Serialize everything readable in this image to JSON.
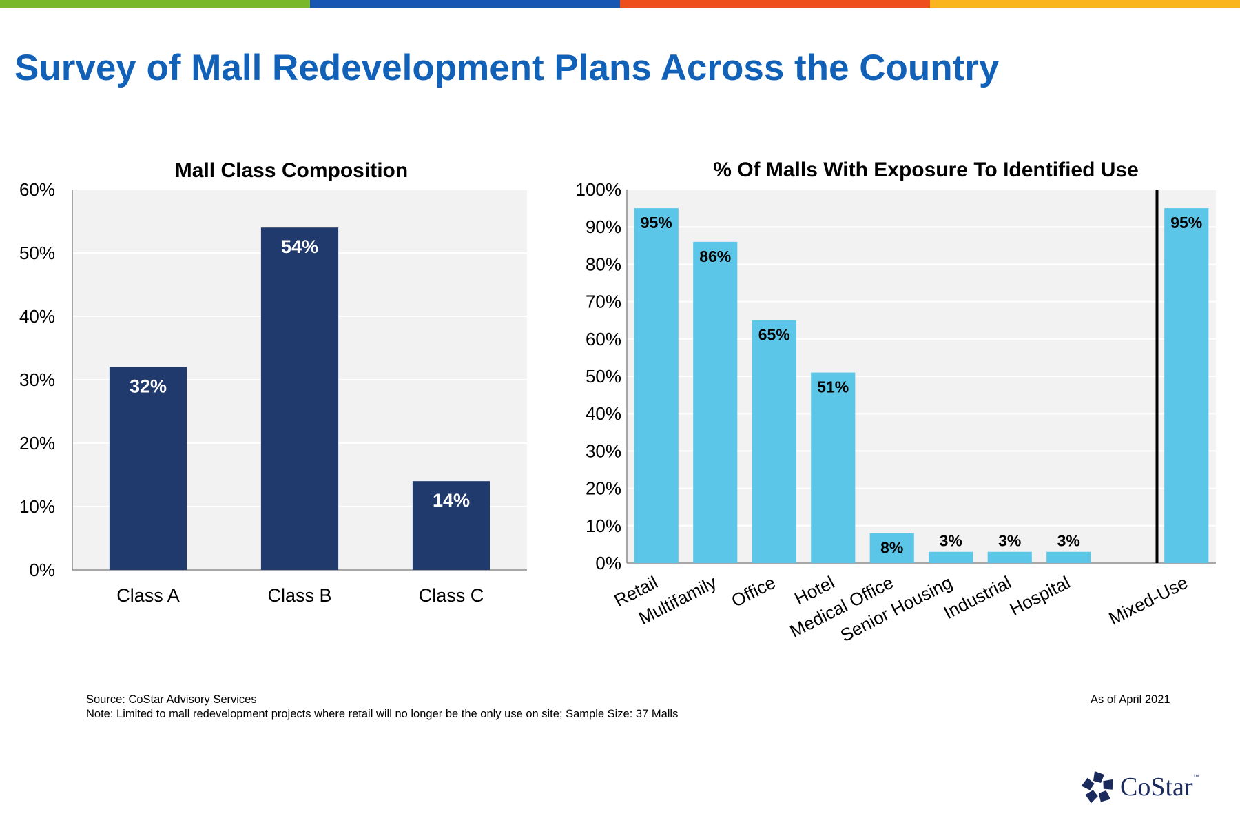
{
  "header": {
    "title": "Survey of Mall Redevelopment Plans Across the Country",
    "accent_colors": [
      "#79b82b",
      "#1856b3",
      "#ee4e1b",
      "#fab51c"
    ],
    "title_color": "#1061b7"
  },
  "chart_data": [
    {
      "type": "bar",
      "title": "Mall Class Composition",
      "categories": [
        "Class A",
        "Class B",
        "Class C"
      ],
      "values": [
        32,
        54,
        14
      ],
      "value_labels": [
        "32%",
        "54%",
        "14%"
      ],
      "ylim": [
        0,
        60
      ],
      "yticks": [
        "0%",
        "10%",
        "20%",
        "30%",
        "40%",
        "50%",
        "60%"
      ],
      "grid": true,
      "bar_color": "#203a6e",
      "label_color": "#ffffff"
    },
    {
      "type": "bar",
      "title": "% Of Malls With Exposure To Identified Use",
      "categories": [
        "Retail",
        "Multifamily",
        "Office",
        "Hotel",
        "Medical Office",
        "Senior Housing",
        "Industrial",
        "Hospital",
        "",
        "Mixed-Use"
      ],
      "values": [
        95,
        86,
        65,
        51,
        8,
        3,
        3,
        3,
        null,
        95
      ],
      "value_labels": [
        "95%",
        "86%",
        "65%",
        "51%",
        "8%",
        "3%",
        "3%",
        "3%",
        "",
        "95%"
      ],
      "ylim": [
        0,
        100
      ],
      "yticks": [
        "0%",
        "10%",
        "20%",
        "30%",
        "40%",
        "50%",
        "60%",
        "70%",
        "80%",
        "90%",
        "100%"
      ],
      "grid": true,
      "divider_before": "Mixed-Use",
      "bar_color": "#5bc6e8",
      "label_color": "#000000"
    }
  ],
  "footer": {
    "source": "Source: CoStar Advisory Services",
    "note": "Note: Limited to mall redevelopment projects where retail will no longer be the only use on site; Sample Size: 37 Malls",
    "as_of": "As of April 2021"
  },
  "logo": {
    "name": "CoStar",
    "trademark": "™",
    "color": "#1b2a5c"
  }
}
